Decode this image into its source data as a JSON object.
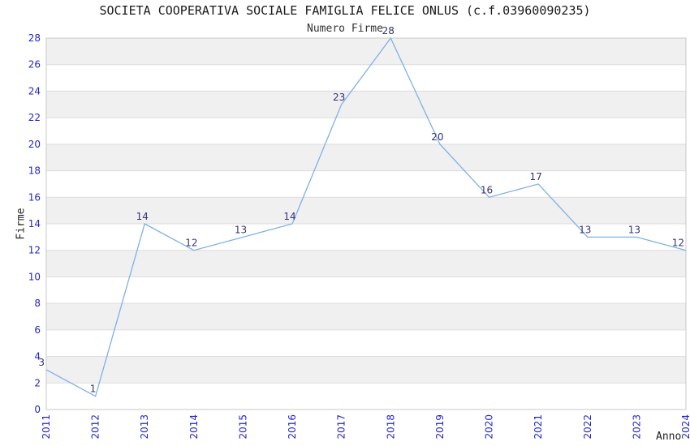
{
  "header": {
    "title": "SOCIETA COOPERATIVA SOCIALE FAMIGLIA FELICE ONLUS (c.f.03960090235)",
    "subtitle": "Numero Firme"
  },
  "chart_data": {
    "type": "line",
    "title": "SOCIETA COOPERATIVA SOCIALE FAMIGLIA FELICE ONLUS (c.f.03960090235)",
    "subtitle": "Numero Firme",
    "xlabel": "Anno",
    "ylabel": "Firme",
    "categories": [
      "2011",
      "2012",
      "2013",
      "2014",
      "2015",
      "2016",
      "2017",
      "2018",
      "2019",
      "2020",
      "2021",
      "2022",
      "2023",
      "2024"
    ],
    "values": [
      3,
      1,
      14,
      12,
      13,
      14,
      23,
      28,
      20,
      16,
      17,
      13,
      13,
      12
    ],
    "ylim": [
      0,
      28
    ],
    "ytick_step": 2,
    "grid": true,
    "legend": "none",
    "point_labels": true,
    "band_fill": "alternating horizontal bands every 2 units",
    "colors": {
      "line": "#7eb1e6",
      "tick_label": "#2424cc",
      "point_label": "#333377",
      "band": "#f0f0f0",
      "grid": "#dcdcdc",
      "border": "#c9c9c9",
      "title_text": "#1a1a1a",
      "axis_label": "#222222"
    }
  }
}
